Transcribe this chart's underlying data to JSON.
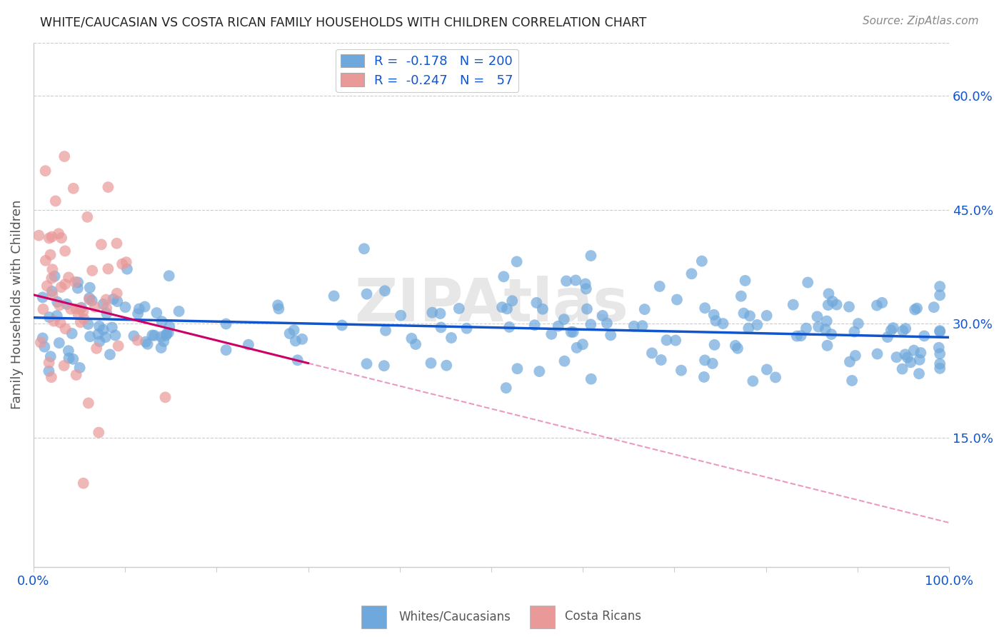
{
  "title": "WHITE/CAUCASIAN VS COSTA RICAN FAMILY HOUSEHOLDS WITH CHILDREN CORRELATION CHART",
  "source": "Source: ZipAtlas.com",
  "ylabel": "Family Households with Children",
  "xlim": [
    0.0,
    1.0
  ],
  "ylim": [
    -0.02,
    0.67
  ],
  "yticks": [
    0.0,
    0.15,
    0.3,
    0.45,
    0.6
  ],
  "ytick_labels": [
    "",
    "15.0%",
    "30.0%",
    "45.0%",
    "60.0%"
  ],
  "xticks": [
    0.0,
    0.1,
    0.2,
    0.3,
    0.4,
    0.5,
    0.6,
    0.7,
    0.8,
    0.9,
    1.0
  ],
  "xtick_labels": [
    "0.0%",
    "",
    "",
    "",
    "",
    "",
    "",
    "",
    "",
    "",
    "100.0%"
  ],
  "blue_color": "#6fa8dc",
  "pink_color": "#ea9999",
  "blue_line_color": "#1155cc",
  "pink_line_color": "#cc0066",
  "legend_blue_R": "-0.178",
  "legend_blue_N": "200",
  "legend_pink_R": "-0.247",
  "legend_pink_N": "57",
  "legend_label1": "Whites/Caucasians",
  "legend_label2": "Costa Ricans",
  "watermark": "ZIPAtlas",
  "blue_intercept": 0.308,
  "blue_slope": -0.026,
  "pink_intercept": 0.338,
  "pink_slope": -0.3,
  "background_color": "#ffffff",
  "title_color": "#222222",
  "axis_label_color": "#555555",
  "tick_label_color": "#1155cc",
  "grid_color": "#cccccc",
  "source_color": "#888888"
}
